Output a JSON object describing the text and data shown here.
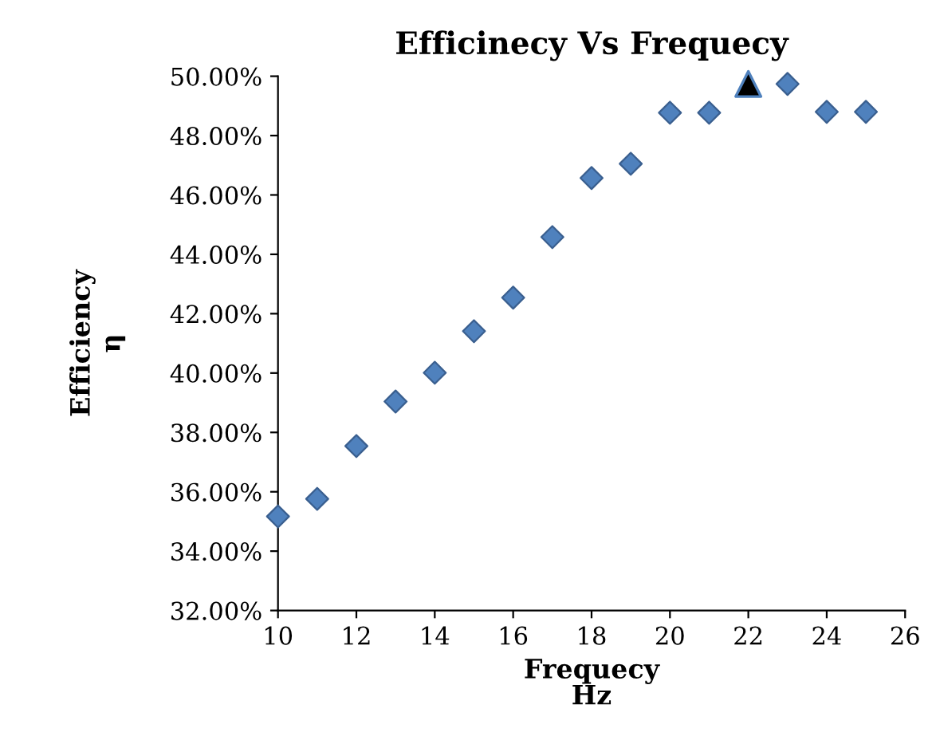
{
  "chart_data": {
    "type": "scatter",
    "title": "Efficinecy Vs Frequecy",
    "xlabel": "Frequecy\nHz",
    "ylabel": "Efficiency\nη",
    "xlim": [
      10,
      26
    ],
    "xticks": [
      10,
      12,
      14,
      16,
      18,
      20,
      22,
      24,
      26
    ],
    "ylim": [
      32,
      50
    ],
    "yticks": [
      {
        "value": 32,
        "label": "32.00%"
      },
      {
        "value": 34,
        "label": "34.00%"
      },
      {
        "value": 36,
        "label": "36.00%"
      },
      {
        "value": 38,
        "label": "38.00%"
      },
      {
        "value": 40,
        "label": "40.00%"
      },
      {
        "value": 42,
        "label": "42.00%"
      },
      {
        "value": 44,
        "label": "44.00%"
      },
      {
        "value": 46,
        "label": "46.00%"
      },
      {
        "value": 48,
        "label": "48.00%"
      },
      {
        "value": 50,
        "label": "50.00%"
      }
    ],
    "grid": false,
    "series": [
      {
        "color": "#4f81bd",
        "marker": "diamond",
        "x": [
          10,
          11,
          12,
          13,
          14,
          15,
          16,
          17,
          18,
          19,
          20,
          21,
          22,
          23,
          24,
          25
        ],
        "values": [
          35.17,
          35.76,
          37.54,
          39.04,
          40.01,
          41.41,
          42.54,
          44.58,
          46.57,
          47.05,
          48.77,
          48.77,
          null,
          49.74,
          48.8,
          48.8
        ]
      },
      {
        "color": "#000000",
        "marker": "triangle",
        "x": [
          22
        ],
        "values": [
          49.74
        ]
      }
    ]
  }
}
